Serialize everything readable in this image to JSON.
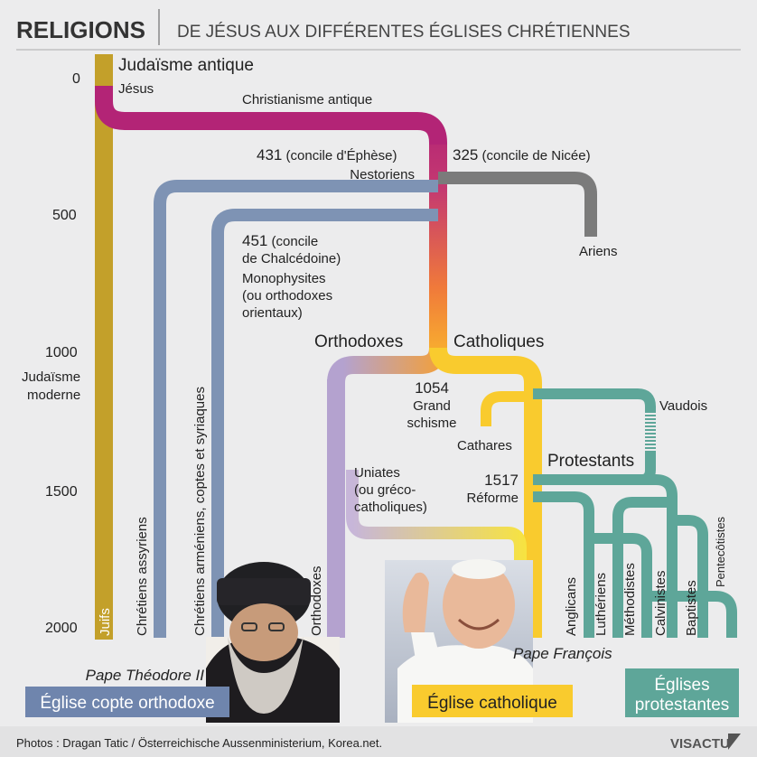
{
  "header": {
    "title": "RELIGIONS",
    "subtitle": "DE JÉSUS AUX DIFFÉRENTES ÉGLISES CHRÉTIENNES"
  },
  "timeline": {
    "years": [
      "0",
      "500",
      "1000",
      "1500",
      "2000"
    ]
  },
  "labels": {
    "judaisme_antique": "Judaïsme antique",
    "jesus": "Jésus",
    "christianisme_antique": "Christianisme antique",
    "ephese_year": "431",
    "ephese_text": "(concile d'Éphèse)",
    "nestoriens": "Nestoriens",
    "nicee_year": "325",
    "nicee_text": "(concile de Nicée)",
    "ariens": "Ariens",
    "chalcedoine_line1_year": "451",
    "chalcedoine_line1_text": "(concile",
    "chalcedoine_line2": "de Chalcédoine)",
    "monophysites_1": "Monophysites",
    "monophysites_2": "(ou orthodoxes",
    "monophysites_3": "orientaux)",
    "judaisme_moderne_1": "Judaïsme",
    "judaisme_moderne_2": "moderne",
    "orthodoxes_head": "Orthodoxes",
    "catholiques_head": "Catholiques",
    "schisme_year": "1054",
    "schisme_1": "Grand",
    "schisme_2": "schisme",
    "vaudois": "Vaudois",
    "cathares": "Cathares",
    "protestants": "Protestants",
    "uniates_1": "Uniates",
    "uniates_2": "(ou gréco-",
    "uniates_3": "catholiques)",
    "reforme_year": "1517",
    "reforme_text": "Réforme"
  },
  "branches": {
    "juifs": "Juifs",
    "chretiens_assyriens": "Chrétiens assyriens",
    "chretiens_armeniens": "Chrétiens arméniens, coptes et syriaques",
    "orthodoxes": "Orthodoxes",
    "anglicans": "Anglicans",
    "lutheriens": "Luthériens",
    "methodistes": "Méthodistes",
    "calvinistes": "Calvinistes",
    "baptistes": "Baptistes",
    "pentecotistes": "Pentecôtistes"
  },
  "captions": {
    "theodore": "Pape Théodore II",
    "francois": "Pape François"
  },
  "boxes": {
    "copte": "Église copte orthodoxe",
    "catholique": "Église catholique",
    "protestantes_1": "Églises",
    "protestantes_2": "protestantes"
  },
  "footer": {
    "credit": "Photos : Dragan Tatic / Österreichische Aussenministerium, Korea.net.",
    "brand": "VISACTU"
  },
  "colors": {
    "judaism": "#c3a02a",
    "early_christian": "#b32476",
    "assyrian": "#7e93b4",
    "arian": "#7b7b7b",
    "orthodox": "#b4a2cf",
    "catholic": "#f9cb2e",
    "protestant": "#5ea699",
    "copte_box": "#6f85ad",
    "catholique_box": "#f9cb2e",
    "protestantes_box": "#5ea699"
  }
}
